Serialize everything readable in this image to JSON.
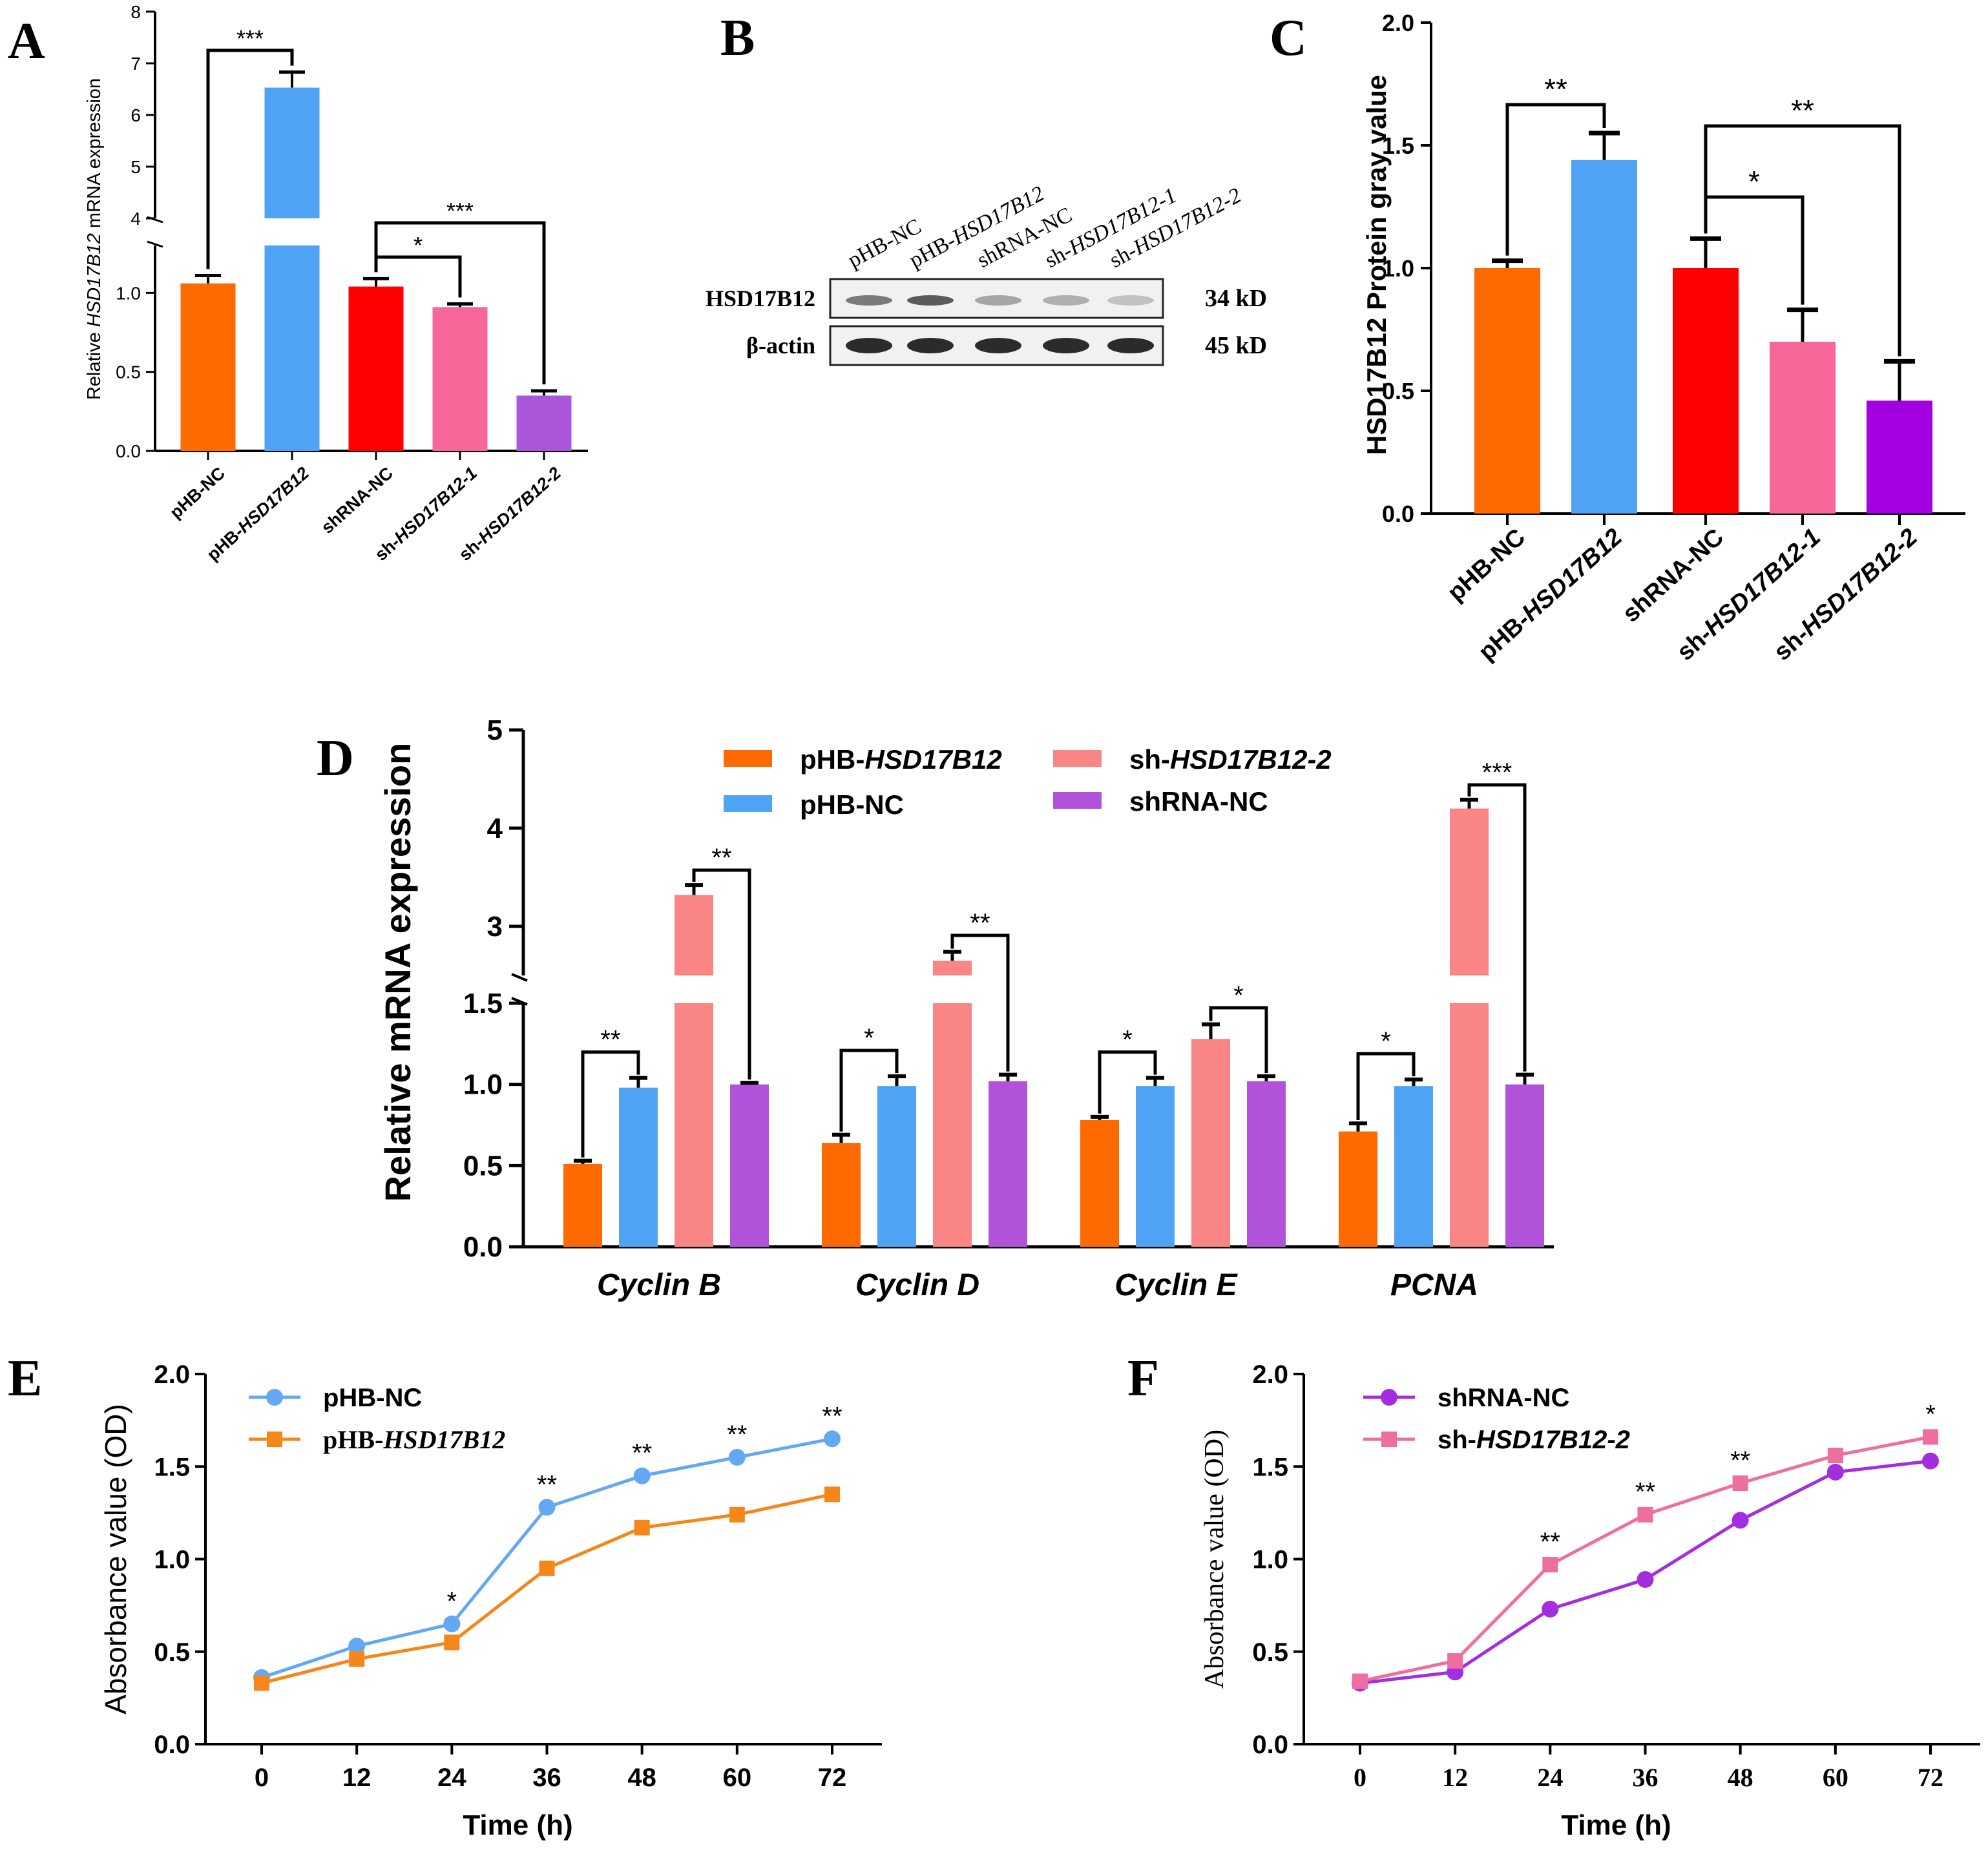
{
  "colors": {
    "orange": "#FF6A00",
    "blue": "#4FA3F5",
    "red": "#FF0000",
    "pink": "#F7679A",
    "purpleA": "#A957D8",
    "purpleC": "#A200E0",
    "salmon": "#F98585",
    "violet": "#B152DA",
    "lineBlue": "#63A8F2",
    "lineOrange": "#F5871A",
    "linePurple": "#A22EE0",
    "linePink": "#EE6EA0"
  },
  "chart_data": [
    {
      "panel": "A",
      "type": "bar",
      "ylabel_pre": "Relative ",
      "ylabel_gene": "HSD17B12",
      "ylabel_post": " mRNA expression",
      "categories": [
        "pHB-NC",
        "pHB-HSD17B12",
        "shRNA-NC",
        "sh-HSD17B12-1",
        "sh-HSD17B12-2"
      ],
      "values": [
        1.06,
        6.53,
        1.04,
        0.91,
        0.35
      ],
      "errors": [
        0.05,
        0.3,
        0.05,
        0.02,
        0.03
      ],
      "y_ticks_low": [
        "0.0",
        "0.5",
        "1.0"
      ],
      "y_ticks_high": [
        "4",
        "5",
        "6",
        "7",
        "8"
      ],
      "ylim_low": [
        0,
        1.3
      ],
      "ylim_high": [
        4,
        8
      ],
      "significance": [
        {
          "between": [
            0,
            1
          ],
          "label": "***"
        },
        {
          "between": [
            2,
            3
          ],
          "label": "*"
        },
        {
          "between": [
            2,
            4
          ],
          "label": "***"
        }
      ]
    },
    {
      "panel": "B",
      "type": "western_blot",
      "lanes": [
        "pHB-NC",
        "pHB-HSD17B12",
        "shRNA-NC",
        "sh-HSD17B12-1",
        "sh-HSD17B12-2"
      ],
      "rows": [
        {
          "protein": "HSD17B12",
          "size": "34 kD"
        },
        {
          "protein": "β-actin",
          "size": "45 kD"
        }
      ]
    },
    {
      "panel": "C",
      "type": "bar",
      "ylabel": "HSD17B12 Protein gray value",
      "categories": [
        "pHB-NC",
        "pHB-HSD17B12",
        "shRNA-NC",
        "sh-HSD17B12-1",
        "sh-HSD17B12-2"
      ],
      "values": [
        1.0,
        1.44,
        1.0,
        0.7,
        0.46
      ],
      "errors": [
        0.03,
        0.11,
        0.12,
        0.13,
        0.16
      ],
      "ylim": [
        0,
        2.0
      ],
      "y_ticks": [
        "0.0",
        "0.5",
        "1.0",
        "1.5",
        "2.0"
      ],
      "significance": [
        {
          "between": [
            0,
            1
          ],
          "label": "**"
        },
        {
          "between": [
            2,
            3
          ],
          "label": "*"
        },
        {
          "between": [
            2,
            4
          ],
          "label": "**"
        }
      ]
    },
    {
      "panel": "D",
      "type": "grouped_bar",
      "ylabel": "Relative mRNA expression",
      "categories": [
        "Cyclin B",
        "Cyclin D",
        "Cyclin E",
        "PCNA"
      ],
      "series": [
        {
          "name": "pHB-HSD17B12",
          "values": [
            0.51,
            0.64,
            0.78,
            0.71
          ],
          "errors": [
            0.02,
            0.05,
            0.02,
            0.05
          ]
        },
        {
          "name": "pHB-NC",
          "values": [
            0.98,
            0.99,
            0.99,
            0.99
          ],
          "errors": [
            0.06,
            0.06,
            0.05,
            0.04
          ]
        },
        {
          "name": "sh-HSD17B12-2",
          "values": [
            3.32,
            2.65,
            1.28,
            4.2
          ],
          "errors": [
            0.1,
            0.09,
            0.09,
            0.09
          ]
        },
        {
          "name": "shRNA-NC",
          "values": [
            1.0,
            1.02,
            1.02,
            1.0
          ],
          "errors": [
            0.01,
            0.04,
            0.03,
            0.06
          ]
        }
      ],
      "legend": [
        {
          "pre": "pHB-",
          "gene": "HSD17B12",
          "post": ""
        },
        {
          "pre": "sh-",
          "gene": "HSD17B12-2",
          "post": ""
        },
        {
          "pre": "pHB-NC",
          "gene": "",
          "post": ""
        },
        {
          "pre": "shRNA-NC",
          "gene": "",
          "post": ""
        }
      ],
      "y_ticks_low": [
        "0.0",
        "0.5",
        "1.0",
        "1.5"
      ],
      "y_ticks_high": [
        "3",
        "4",
        "5"
      ],
      "ylim_low": [
        0,
        1.5
      ],
      "ylim_high": [
        2.5,
        5
      ],
      "significance": [
        {
          "group": 0,
          "between": [
            0,
            1
          ],
          "label": "**"
        },
        {
          "group": 0,
          "between": [
            2,
            3
          ],
          "label": "**"
        },
        {
          "group": 1,
          "between": [
            0,
            1
          ],
          "label": "*"
        },
        {
          "group": 1,
          "between": [
            2,
            3
          ],
          "label": "**"
        },
        {
          "group": 2,
          "between": [
            0,
            1
          ],
          "label": "*"
        },
        {
          "group": 2,
          "between": [
            2,
            3
          ],
          "label": "*"
        },
        {
          "group": 3,
          "between": [
            0,
            1
          ],
          "label": "*"
        },
        {
          "group": 3,
          "between": [
            2,
            3
          ],
          "label": "***"
        }
      ]
    },
    {
      "panel": "E",
      "type": "line",
      "xlabel": "Time (h)",
      "ylabel": "Absorbance value (OD)",
      "x": [
        0,
        12,
        24,
        36,
        48,
        60,
        72
      ],
      "x_ticks": [
        "0",
        "12",
        "24",
        "36",
        "48",
        "60",
        "72"
      ],
      "y_ticks": [
        "0.0",
        "0.5",
        "1.0",
        "1.5",
        "2.0"
      ],
      "ylim": [
        0,
        2.0
      ],
      "series": [
        {
          "name": "pHB-NC",
          "values": [
            0.36,
            0.53,
            0.65,
            1.28,
            1.45,
            1.55,
            1.65
          ]
        },
        {
          "name": "pHB-HSD17B12",
          "values": [
            0.33,
            0.46,
            0.55,
            0.95,
            1.17,
            1.24,
            1.35
          ]
        }
      ],
      "legend": [
        {
          "pre": "pHB-NC",
          "gene": ""
        },
        {
          "pre": "pHB-",
          "gene": "HSD17B12"
        }
      ],
      "annotations": [
        "",
        "",
        "*",
        "**",
        "**",
        "**",
        "**"
      ]
    },
    {
      "panel": "F",
      "type": "line",
      "xlabel": "Time (h)",
      "ylabel": "Absorbance value (OD)",
      "x": [
        0,
        12,
        24,
        36,
        48,
        60,
        72
      ],
      "x_ticks": [
        "0",
        "12",
        "24",
        "36",
        "48",
        "60",
        "72"
      ],
      "y_ticks": [
        "0.0",
        "0.5",
        "1.0",
        "1.5",
        "2.0"
      ],
      "ylim": [
        0,
        2.0
      ],
      "series": [
        {
          "name": "shRNA-NC",
          "values": [
            0.33,
            0.39,
            0.73,
            0.89,
            1.21,
            1.47,
            1.53
          ]
        },
        {
          "name": "sh-HSD17B12-2",
          "values": [
            0.34,
            0.45,
            0.97,
            1.24,
            1.41,
            1.56,
            1.66
          ]
        }
      ],
      "legend": [
        {
          "pre": "shRNA-NC",
          "gene": ""
        },
        {
          "pre": "sh-",
          "gene": "HSD17B12-2"
        }
      ],
      "annotations": [
        "",
        "",
        "**",
        "**",
        "**",
        "",
        "*"
      ]
    }
  ]
}
